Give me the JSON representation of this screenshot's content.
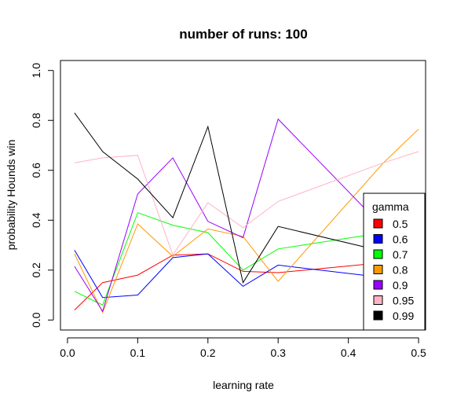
{
  "chart_data": {
    "type": "line",
    "title": "number of runs:  100",
    "xlabel": "learning rate",
    "ylabel": "probability Hounds win",
    "xlim": [
      -0.01,
      0.51
    ],
    "ylim": [
      -0.04,
      1.04
    ],
    "x_ticks": [
      {
        "value": 0.0,
        "label": "0.0"
      },
      {
        "value": 0.1,
        "label": "0.1"
      },
      {
        "value": 0.2,
        "label": "0.2"
      },
      {
        "value": 0.3,
        "label": "0.3"
      },
      {
        "value": 0.4,
        "label": "0.4"
      },
      {
        "value": 0.5,
        "label": "0.5"
      }
    ],
    "y_ticks": [
      {
        "value": 0.0,
        "label": "0.0"
      },
      {
        "value": 0.2,
        "label": "0.2"
      },
      {
        "value": 0.4,
        "label": "0.4"
      },
      {
        "value": 0.6,
        "label": "0.6"
      },
      {
        "value": 0.8,
        "label": "0.8"
      },
      {
        "value": 1.0,
        "label": "1.0"
      }
    ],
    "x": [
      0.01,
      0.05,
      0.1,
      0.15,
      0.2,
      0.25,
      0.3,
      0.45,
      0.5
    ],
    "grid": false,
    "legend": {
      "title": "gamma",
      "position": "bottom-right"
    },
    "series": [
      {
        "name": "0.5",
        "color": "#ff0000",
        "values": [
          0.04,
          0.15,
          0.18,
          0.26,
          0.265,
          0.195,
          0.19,
          0.23,
          0.23
        ]
      },
      {
        "name": "0.6",
        "color": "#0000ff",
        "values": [
          0.28,
          0.09,
          0.1,
          0.25,
          0.265,
          0.135,
          0.22,
          0.17,
          0.17
        ]
      },
      {
        "name": "0.7",
        "color": "#00ff00",
        "values": [
          0.115,
          0.06,
          0.43,
          0.38,
          0.35,
          0.2,
          0.285,
          0.35,
          0.35
        ]
      },
      {
        "name": "0.8",
        "color": "#ff9900",
        "values": [
          0.265,
          0.03,
          0.385,
          0.255,
          0.365,
          0.335,
          0.155,
          0.63,
          0.765
        ]
      },
      {
        "name": "0.9",
        "color": "#9900ff",
        "values": [
          0.215,
          0.035,
          0.505,
          0.65,
          0.395,
          0.33,
          0.805,
          0.37,
          0.37
        ]
      },
      {
        "name": "0.95",
        "color": "#ffb3c6",
        "values": [
          0.63,
          0.65,
          0.66,
          0.26,
          0.47,
          0.37,
          0.475,
          0.63,
          0.675
        ]
      },
      {
        "name": "0.99",
        "color": "#000000",
        "values": [
          0.83,
          0.675,
          0.565,
          0.41,
          0.775,
          0.15,
          0.375,
          0.275,
          0.275
        ]
      }
    ]
  }
}
